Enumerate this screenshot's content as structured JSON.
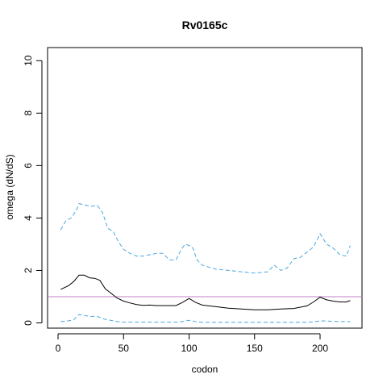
{
  "chart_data": {
    "type": "line",
    "title": "Rv0165c",
    "xlabel": "codon",
    "ylabel": "omega (dN/dS)",
    "xlim": [
      -8,
      232
    ],
    "ylim": [
      -0.2,
      10.5
    ],
    "xticks": [
      0,
      50,
      100,
      150,
      200
    ],
    "yticks": [
      0,
      2,
      4,
      6,
      8,
      10
    ],
    "grid": false,
    "reference_line": {
      "y": 1,
      "color": "#C080C0"
    },
    "series": [
      {
        "role": "omega",
        "color": "#000000",
        "dash": "solid",
        "x": [
          2,
          8,
          12,
          16,
          20,
          24,
          28,
          32,
          36,
          40,
          45,
          50,
          55,
          60,
          65,
          70,
          75,
          80,
          85,
          90,
          95,
          100,
          105,
          110,
          120,
          130,
          140,
          150,
          160,
          170,
          180,
          190,
          195,
          200,
          205,
          210,
          215,
          220,
          223
        ],
        "y": [
          1.28,
          1.42,
          1.58,
          1.82,
          1.82,
          1.72,
          1.7,
          1.62,
          1.3,
          1.15,
          0.95,
          0.83,
          0.76,
          0.7,
          0.67,
          0.68,
          0.66,
          0.66,
          0.66,
          0.66,
          0.78,
          0.93,
          0.78,
          0.68,
          0.62,
          0.56,
          0.53,
          0.5,
          0.5,
          0.53,
          0.55,
          0.65,
          0.8,
          0.98,
          0.88,
          0.83,
          0.8,
          0.8,
          0.85
        ]
      },
      {
        "role": "upper",
        "color": "#4AA8E0",
        "dash": "dashed",
        "x": [
          2,
          6,
          10,
          14,
          16,
          20,
          25,
          30,
          34,
          38,
          42,
          46,
          50,
          55,
          60,
          65,
          70,
          75,
          80,
          85,
          90,
          94,
          97,
          100,
          103,
          106,
          110,
          120,
          130,
          140,
          150,
          160,
          165,
          170,
          175,
          180,
          185,
          190,
          195,
          200,
          205,
          210,
          215,
          220,
          223
        ],
        "y": [
          3.55,
          3.9,
          4.0,
          4.3,
          4.55,
          4.5,
          4.45,
          4.48,
          4.2,
          3.6,
          3.5,
          3.1,
          2.8,
          2.65,
          2.55,
          2.55,
          2.6,
          2.65,
          2.65,
          2.4,
          2.4,
          2.8,
          3.0,
          2.95,
          2.85,
          2.4,
          2.2,
          2.05,
          2.0,
          1.95,
          1.9,
          1.95,
          2.2,
          2.0,
          2.1,
          2.45,
          2.5,
          2.7,
          2.9,
          3.4,
          3.0,
          2.85,
          2.6,
          2.55,
          2.95
        ]
      },
      {
        "role": "lower",
        "color": "#4AA8E0",
        "dash": "dashed",
        "x": [
          2,
          8,
          12,
          16,
          20,
          25,
          30,
          35,
          40,
          45,
          50,
          60,
          70,
          80,
          90,
          95,
          100,
          105,
          110,
          120,
          140,
          160,
          180,
          190,
          195,
          200,
          205,
          210,
          215,
          220,
          223
        ],
        "y": [
          0.05,
          0.08,
          0.12,
          0.32,
          0.28,
          0.25,
          0.25,
          0.15,
          0.1,
          0.05,
          0.03,
          0.03,
          0.03,
          0.03,
          0.03,
          0.05,
          0.1,
          0.05,
          0.02,
          0.02,
          0.02,
          0.02,
          0.02,
          0.03,
          0.04,
          0.08,
          0.07,
          0.06,
          0.05,
          0.05,
          0.05
        ]
      }
    ]
  }
}
